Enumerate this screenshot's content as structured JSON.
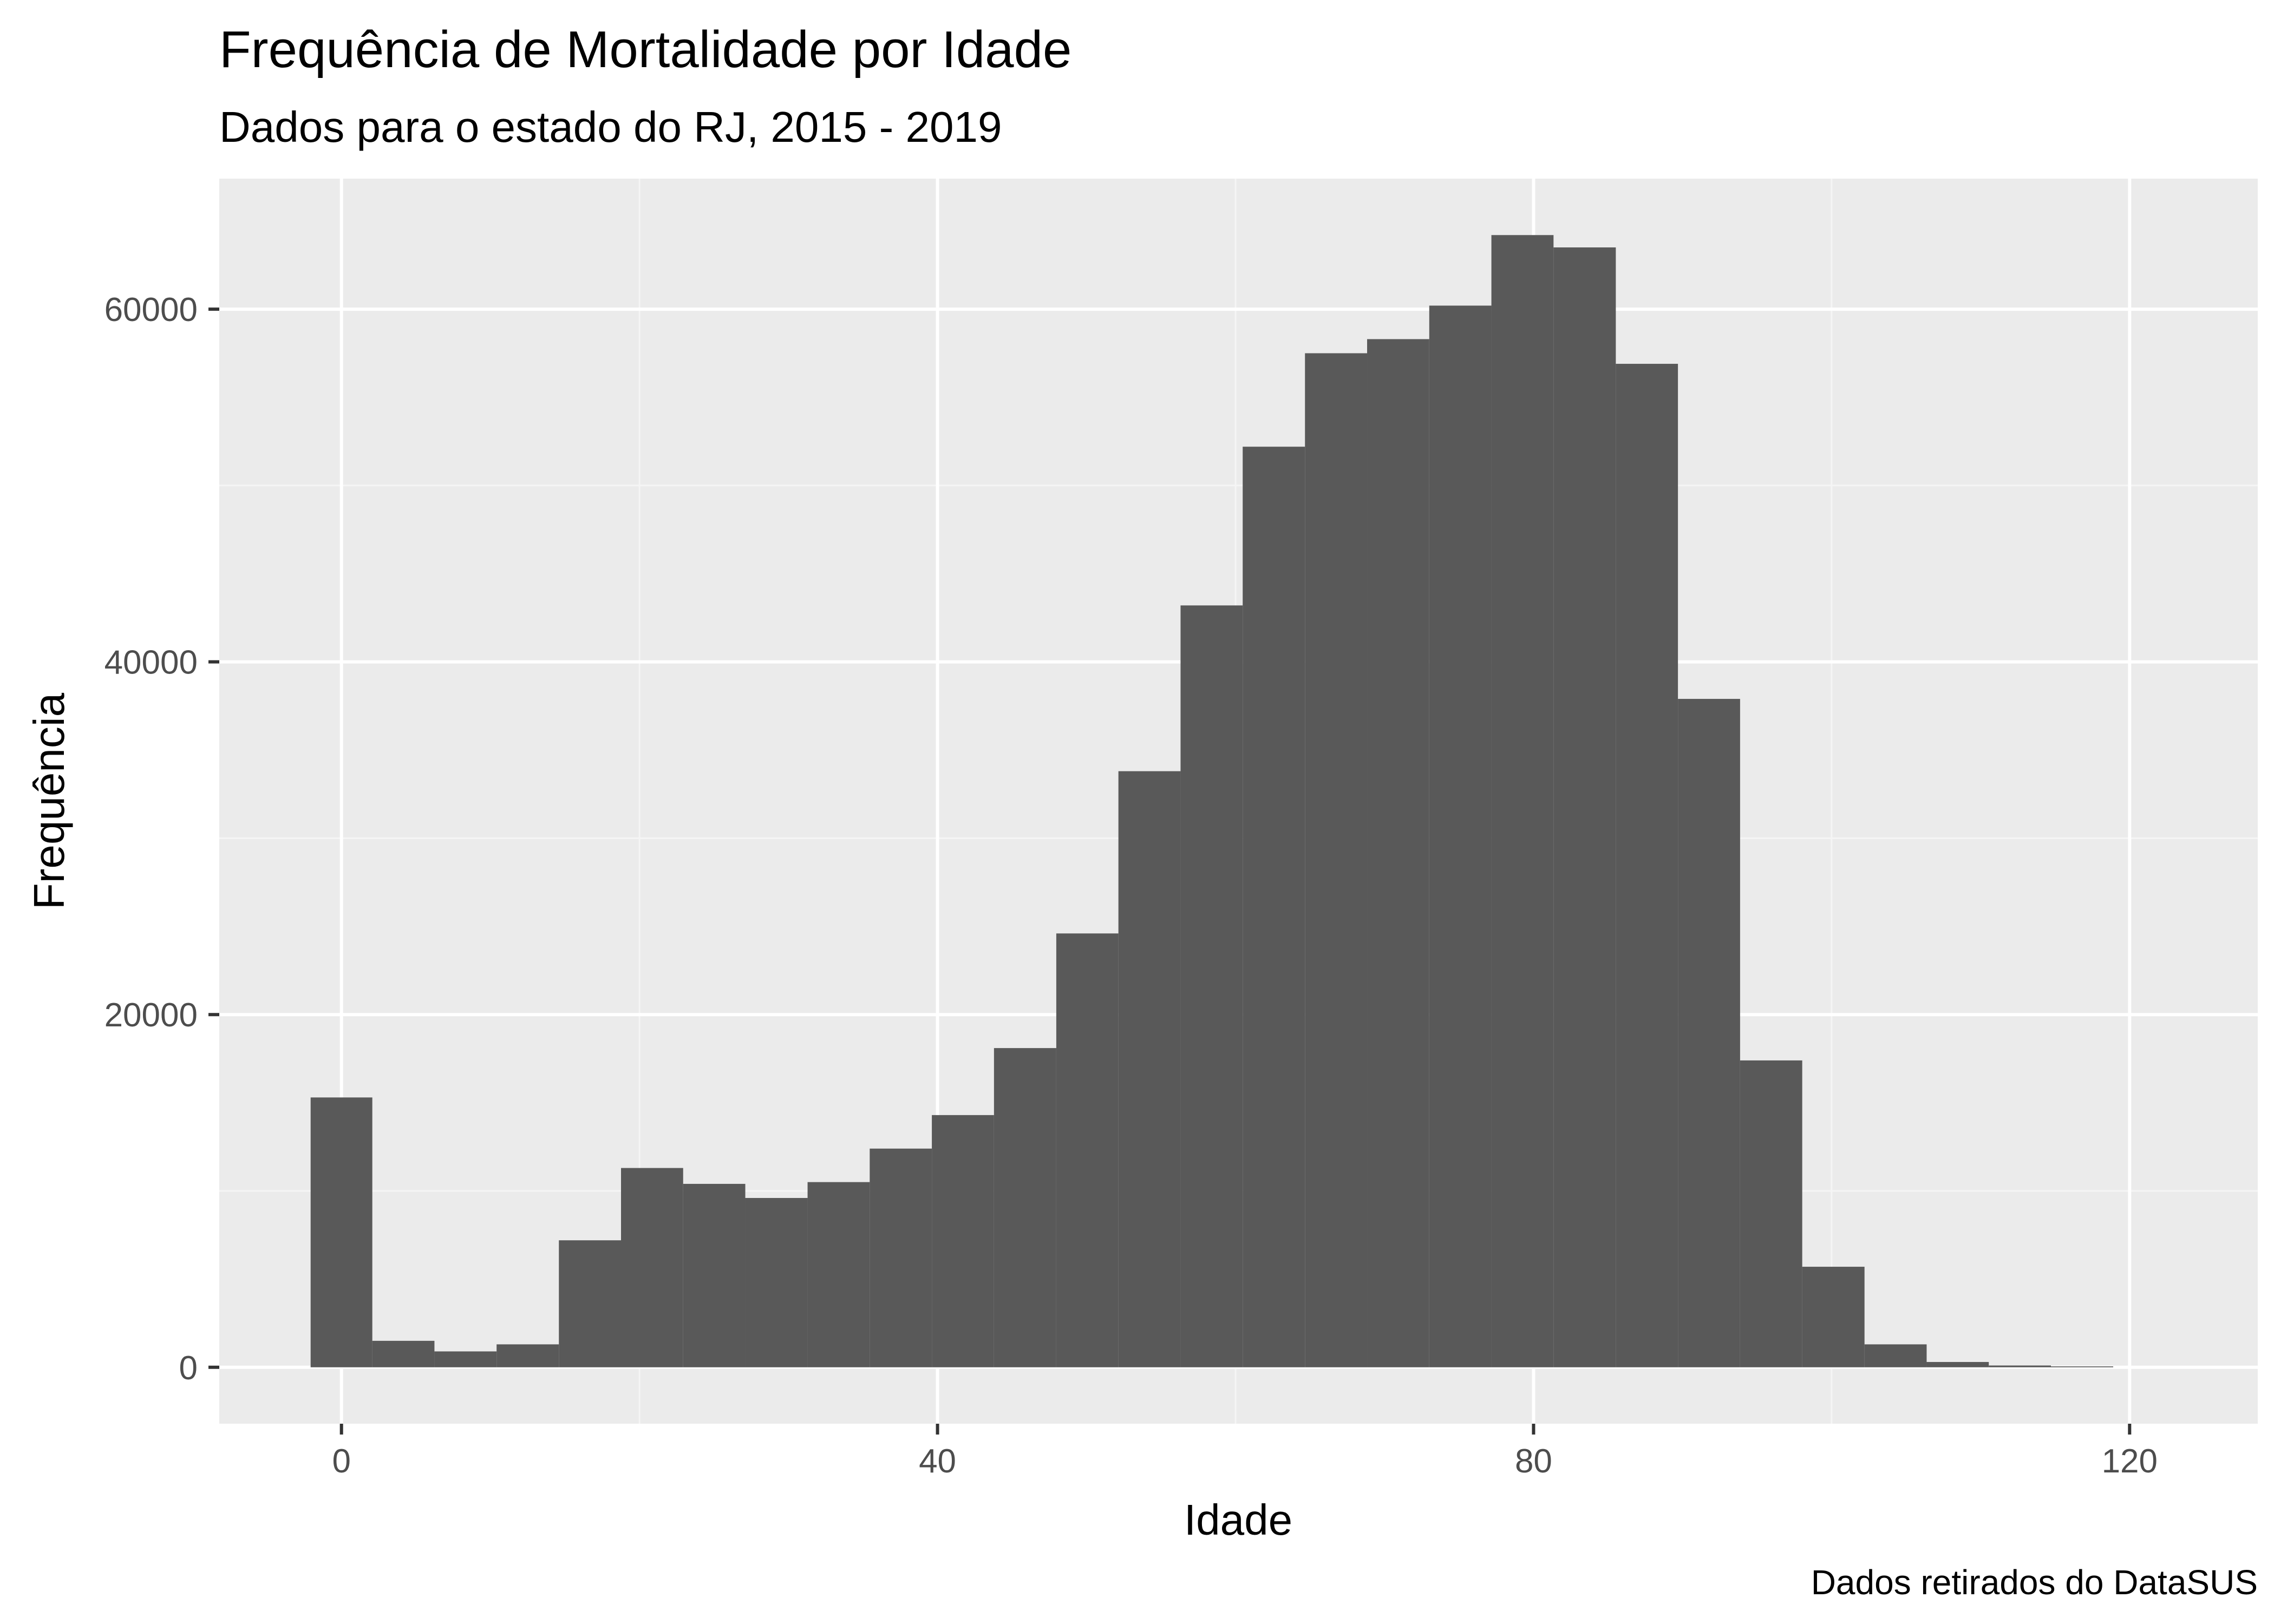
{
  "chart_data": {
    "type": "bar",
    "title": "Frequência de Mortalidade por Idade",
    "subtitle": "Dados para o estado do RJ, 2015 - 2019",
    "xlabel": "Idade",
    "ylabel": "Frequência",
    "caption": "Dados retirados do DataSUS",
    "xlim": [
      -8.2,
      128.6
    ],
    "ylim": [
      -3200,
      67400
    ],
    "x_ticks": [
      0,
      40,
      80,
      120
    ],
    "y_ticks": [
      0,
      20000,
      40000,
      60000
    ],
    "x_tick_labels": [
      "0",
      "40",
      "80",
      "120"
    ],
    "y_tick_labels": [
      "0",
      "20000",
      "40000",
      "60000"
    ],
    "grid": true,
    "bin_width": 4.17,
    "bins": [
      {
        "x0": -2.07,
        "x1": 2.07,
        "value": 15300
      },
      {
        "x0": 2.07,
        "x1": 6.24,
        "value": 1500
      },
      {
        "x0": 6.24,
        "x1": 10.41,
        "value": 900
      },
      {
        "x0": 10.41,
        "x1": 14.59,
        "value": 1300
      },
      {
        "x0": 14.59,
        "x1": 18.76,
        "value": 7200
      },
      {
        "x0": 18.76,
        "x1": 22.93,
        "value": 11300
      },
      {
        "x0": 22.93,
        "x1": 27.1,
        "value": 10400
      },
      {
        "x0": 27.1,
        "x1": 31.28,
        "value": 9600
      },
      {
        "x0": 31.28,
        "x1": 35.45,
        "value": 10500
      },
      {
        "x0": 35.45,
        "x1": 39.62,
        "value": 12400
      },
      {
        "x0": 39.62,
        "x1": 43.79,
        "value": 14300
      },
      {
        "x0": 43.79,
        "x1": 47.97,
        "value": 18100
      },
      {
        "x0": 47.97,
        "x1": 52.14,
        "value": 24600
      },
      {
        "x0": 52.14,
        "x1": 56.31,
        "value": 33800
      },
      {
        "x0": 56.31,
        "x1": 60.48,
        "value": 43200
      },
      {
        "x0": 60.48,
        "x1": 64.66,
        "value": 52200
      },
      {
        "x0": 64.66,
        "x1": 68.83,
        "value": 57500
      },
      {
        "x0": 68.83,
        "x1": 73.0,
        "value": 58300
      },
      {
        "x0": 73.0,
        "x1": 77.17,
        "value": 60200
      },
      {
        "x0": 77.17,
        "x1": 81.34,
        "value": 64200
      },
      {
        "x0": 81.34,
        "x1": 85.52,
        "value": 63500
      },
      {
        "x0": 85.52,
        "x1": 89.69,
        "value": 56900
      },
      {
        "x0": 89.69,
        "x1": 93.86,
        "value": 37900
      },
      {
        "x0": 93.86,
        "x1": 98.03,
        "value": 17400
      },
      {
        "x0": 98.03,
        "x1": 102.21,
        "value": 5700
      },
      {
        "x0": 102.21,
        "x1": 106.38,
        "value": 1300
      },
      {
        "x0": 106.38,
        "x1": 110.55,
        "value": 300
      },
      {
        "x0": 110.55,
        "x1": 114.72,
        "value": 100
      },
      {
        "x0": 114.72,
        "x1": 118.9,
        "value": 50
      }
    ],
    "colors": {
      "bar": "#595959",
      "panel": "#ebebeb",
      "grid_major": "#ffffff",
      "grid_minor": "#f5f5f5",
      "tick_text": "#4d4d4d"
    }
  }
}
